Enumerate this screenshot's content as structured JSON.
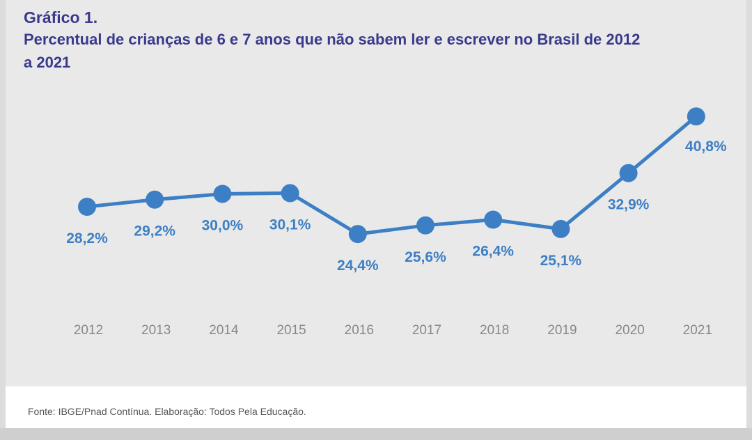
{
  "header": {
    "label": "Gráfico 1.",
    "title": "Percentual de crianças de 6 e 7 anos que não sabem ler e escrever no Brasil de 2012 a 2021"
  },
  "footer": {
    "source": "Fonte: IBGE/Pnad Contínua. Elaboração: Todos Pela Educação."
  },
  "colors": {
    "line": "#3d7fc4",
    "title": "#3a3a8c",
    "ticks": "#888888"
  },
  "chart_data": {
    "type": "line",
    "title": "Percentual de crianças de 6 e 7 anos que não sabem ler e escrever no Brasil de 2012 a 2021",
    "categories": [
      "2012",
      "2013",
      "2014",
      "2015",
      "2016",
      "2017",
      "2018",
      "2019",
      "2020",
      "2021"
    ],
    "series": [
      {
        "values": [
          28.2,
          29.2,
          30.0,
          30.1,
          24.4,
          25.6,
          26.4,
          25.1,
          32.9,
          40.8
        ],
        "labels": [
          "28,2%",
          "29,2%",
          "30,0%",
          "30,1%",
          "24,4%",
          "25,6%",
          "26,4%",
          "25,1%",
          "32,9%",
          "40,8%"
        ]
      }
    ],
    "grid": false,
    "legend": "none",
    "y_axis_visible": false
  }
}
